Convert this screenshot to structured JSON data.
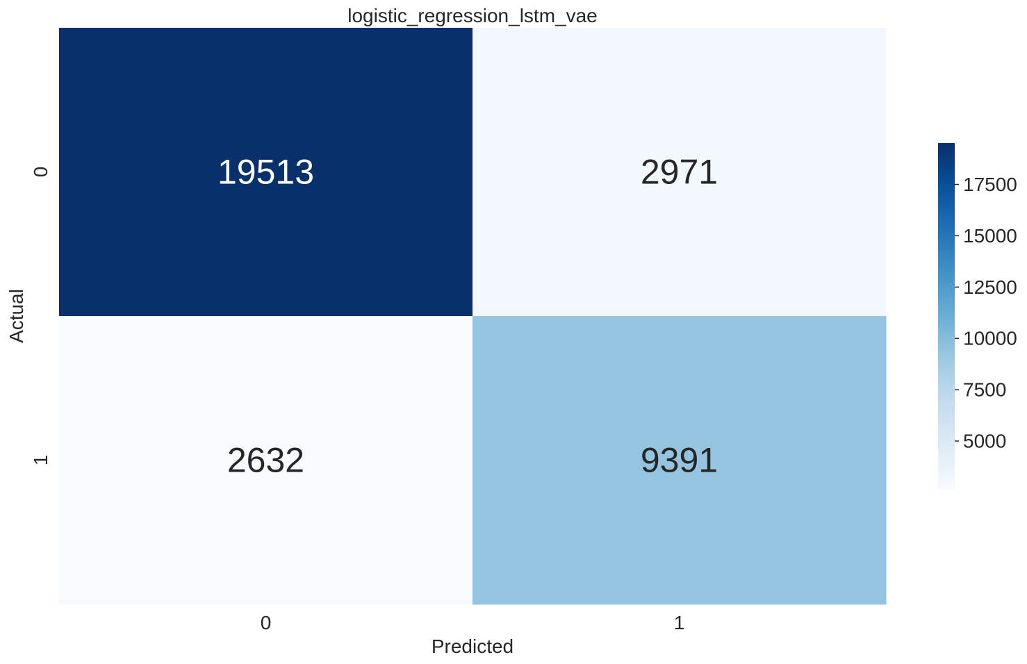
{
  "chart_data": {
    "type": "heatmap",
    "title": "logistic_regression_lstm_vae",
    "xlabel": "Predicted",
    "ylabel": "Actual",
    "x_categories": [
      "0",
      "1"
    ],
    "y_categories": [
      "0",
      "1"
    ],
    "values": [
      [
        19513,
        2971
      ],
      [
        2632,
        9391
      ]
    ],
    "colormap": "Blues",
    "colorbar": {
      "range": [
        2632,
        19513
      ],
      "ticks": [
        5000,
        7500,
        10000,
        12500,
        15000,
        17500
      ],
      "tick_labels": [
        "5000",
        "7500",
        "10000",
        "12500",
        "15000",
        "17500"
      ]
    },
    "grid": false,
    "colors": {
      "low": "#f7fbff",
      "high": "#08306b",
      "text_dark": "#262626",
      "text_light": "#ffffff"
    }
  }
}
